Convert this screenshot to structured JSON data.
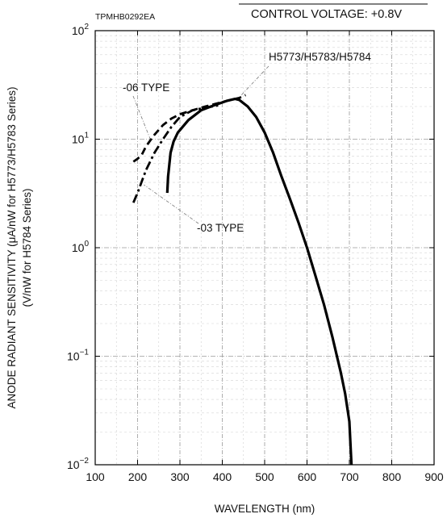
{
  "chart_data": {
    "type": "line",
    "code": "TPMHB0292EA",
    "condition": "CONTROL VOLTAGE: +0.8V",
    "xlabel": "WAVELENGTH (nm)",
    "ylabel": "ANODE RADIANT SENSITIVITY (μA/nW for H5773/H5783 Series)",
    "ylabel2": "(V/nW for H5784 Series)",
    "xlim": [
      100,
      900
    ],
    "ylim": [
      0.01,
      100
    ],
    "yscale": "log",
    "grid": true,
    "x_ticks": [
      "100",
      "200",
      "300",
      "400",
      "500",
      "600",
      "700",
      "800",
      "900"
    ],
    "y_ticks": [
      {
        "base": "10",
        "exp": "2",
        "value": 100
      },
      {
        "base": "10",
        "exp": "1",
        "value": 10
      },
      {
        "base": "10",
        "exp": "0",
        "value": 1
      },
      {
        "base": "10",
        "exp": "−1",
        "value": 0.1
      },
      {
        "base": "10",
        "exp": "−2",
        "value": 0.01
      }
    ],
    "series": [
      {
        "name": "H5773/H5783/H5784",
        "style": "solid",
        "color": "#000000",
        "points": [
          [
            270,
            3.2
          ],
          [
            272,
            4.5
          ],
          [
            278,
            7.5
          ],
          [
            285,
            9.5
          ],
          [
            295,
            11.5
          ],
          [
            320,
            15
          ],
          [
            350,
            18.5
          ],
          [
            380,
            20.5
          ],
          [
            410,
            22.5
          ],
          [
            430,
            23.5
          ],
          [
            440,
            23
          ],
          [
            460,
            20
          ],
          [
            480,
            16
          ],
          [
            500,
            11.5
          ],
          [
            520,
            7.5
          ],
          [
            540,
            4.5
          ],
          [
            560,
            2.8
          ],
          [
            580,
            1.7
          ],
          [
            600,
            1.0
          ],
          [
            620,
            0.55
          ],
          [
            640,
            0.3
          ],
          [
            660,
            0.15
          ],
          [
            680,
            0.07
          ],
          [
            690,
            0.045
          ],
          [
            700,
            0.025
          ],
          [
            705,
            0.01
          ]
        ]
      },
      {
        "name": "-06 TYPE",
        "style": "dashed",
        "color": "#000000",
        "points": [
          [
            190,
            6.2
          ],
          [
            200,
            6.6
          ],
          [
            210,
            7.2
          ],
          [
            220,
            8.6
          ],
          [
            240,
            11
          ],
          [
            260,
            13.5
          ],
          [
            280,
            15.5
          ],
          [
            300,
            17
          ],
          [
            330,
            18.5
          ],
          [
            360,
            20
          ],
          [
            390,
            21.5
          ],
          [
            420,
            23
          ],
          [
            440,
            24
          ],
          [
            455,
            25.5
          ]
        ]
      },
      {
        "name": "-03 TYPE",
        "style": "dashdot",
        "color": "#000000",
        "points": [
          [
            190,
            2.6
          ],
          [
            200,
            3.2
          ],
          [
            210,
            4.1
          ],
          [
            220,
            5.2
          ],
          [
            240,
            7.5
          ],
          [
            260,
            10
          ],
          [
            280,
            13
          ],
          [
            300,
            16
          ],
          [
            330,
            18.5
          ],
          [
            360,
            19.5
          ],
          [
            390,
            20.5
          ]
        ]
      }
    ],
    "annotations": [
      {
        "text": "H5773/H5783/H5784",
        "series": "H5773/H5783/H5784",
        "at": [
          445,
          25.5
        ]
      },
      {
        "text": "-06 TYPE",
        "series": "-06 TYPE",
        "at": [
          230,
          10
        ]
      },
      {
        "text": "-03 TYPE",
        "series": "-03 TYPE",
        "at": [
          215,
          3.8
        ]
      }
    ]
  }
}
